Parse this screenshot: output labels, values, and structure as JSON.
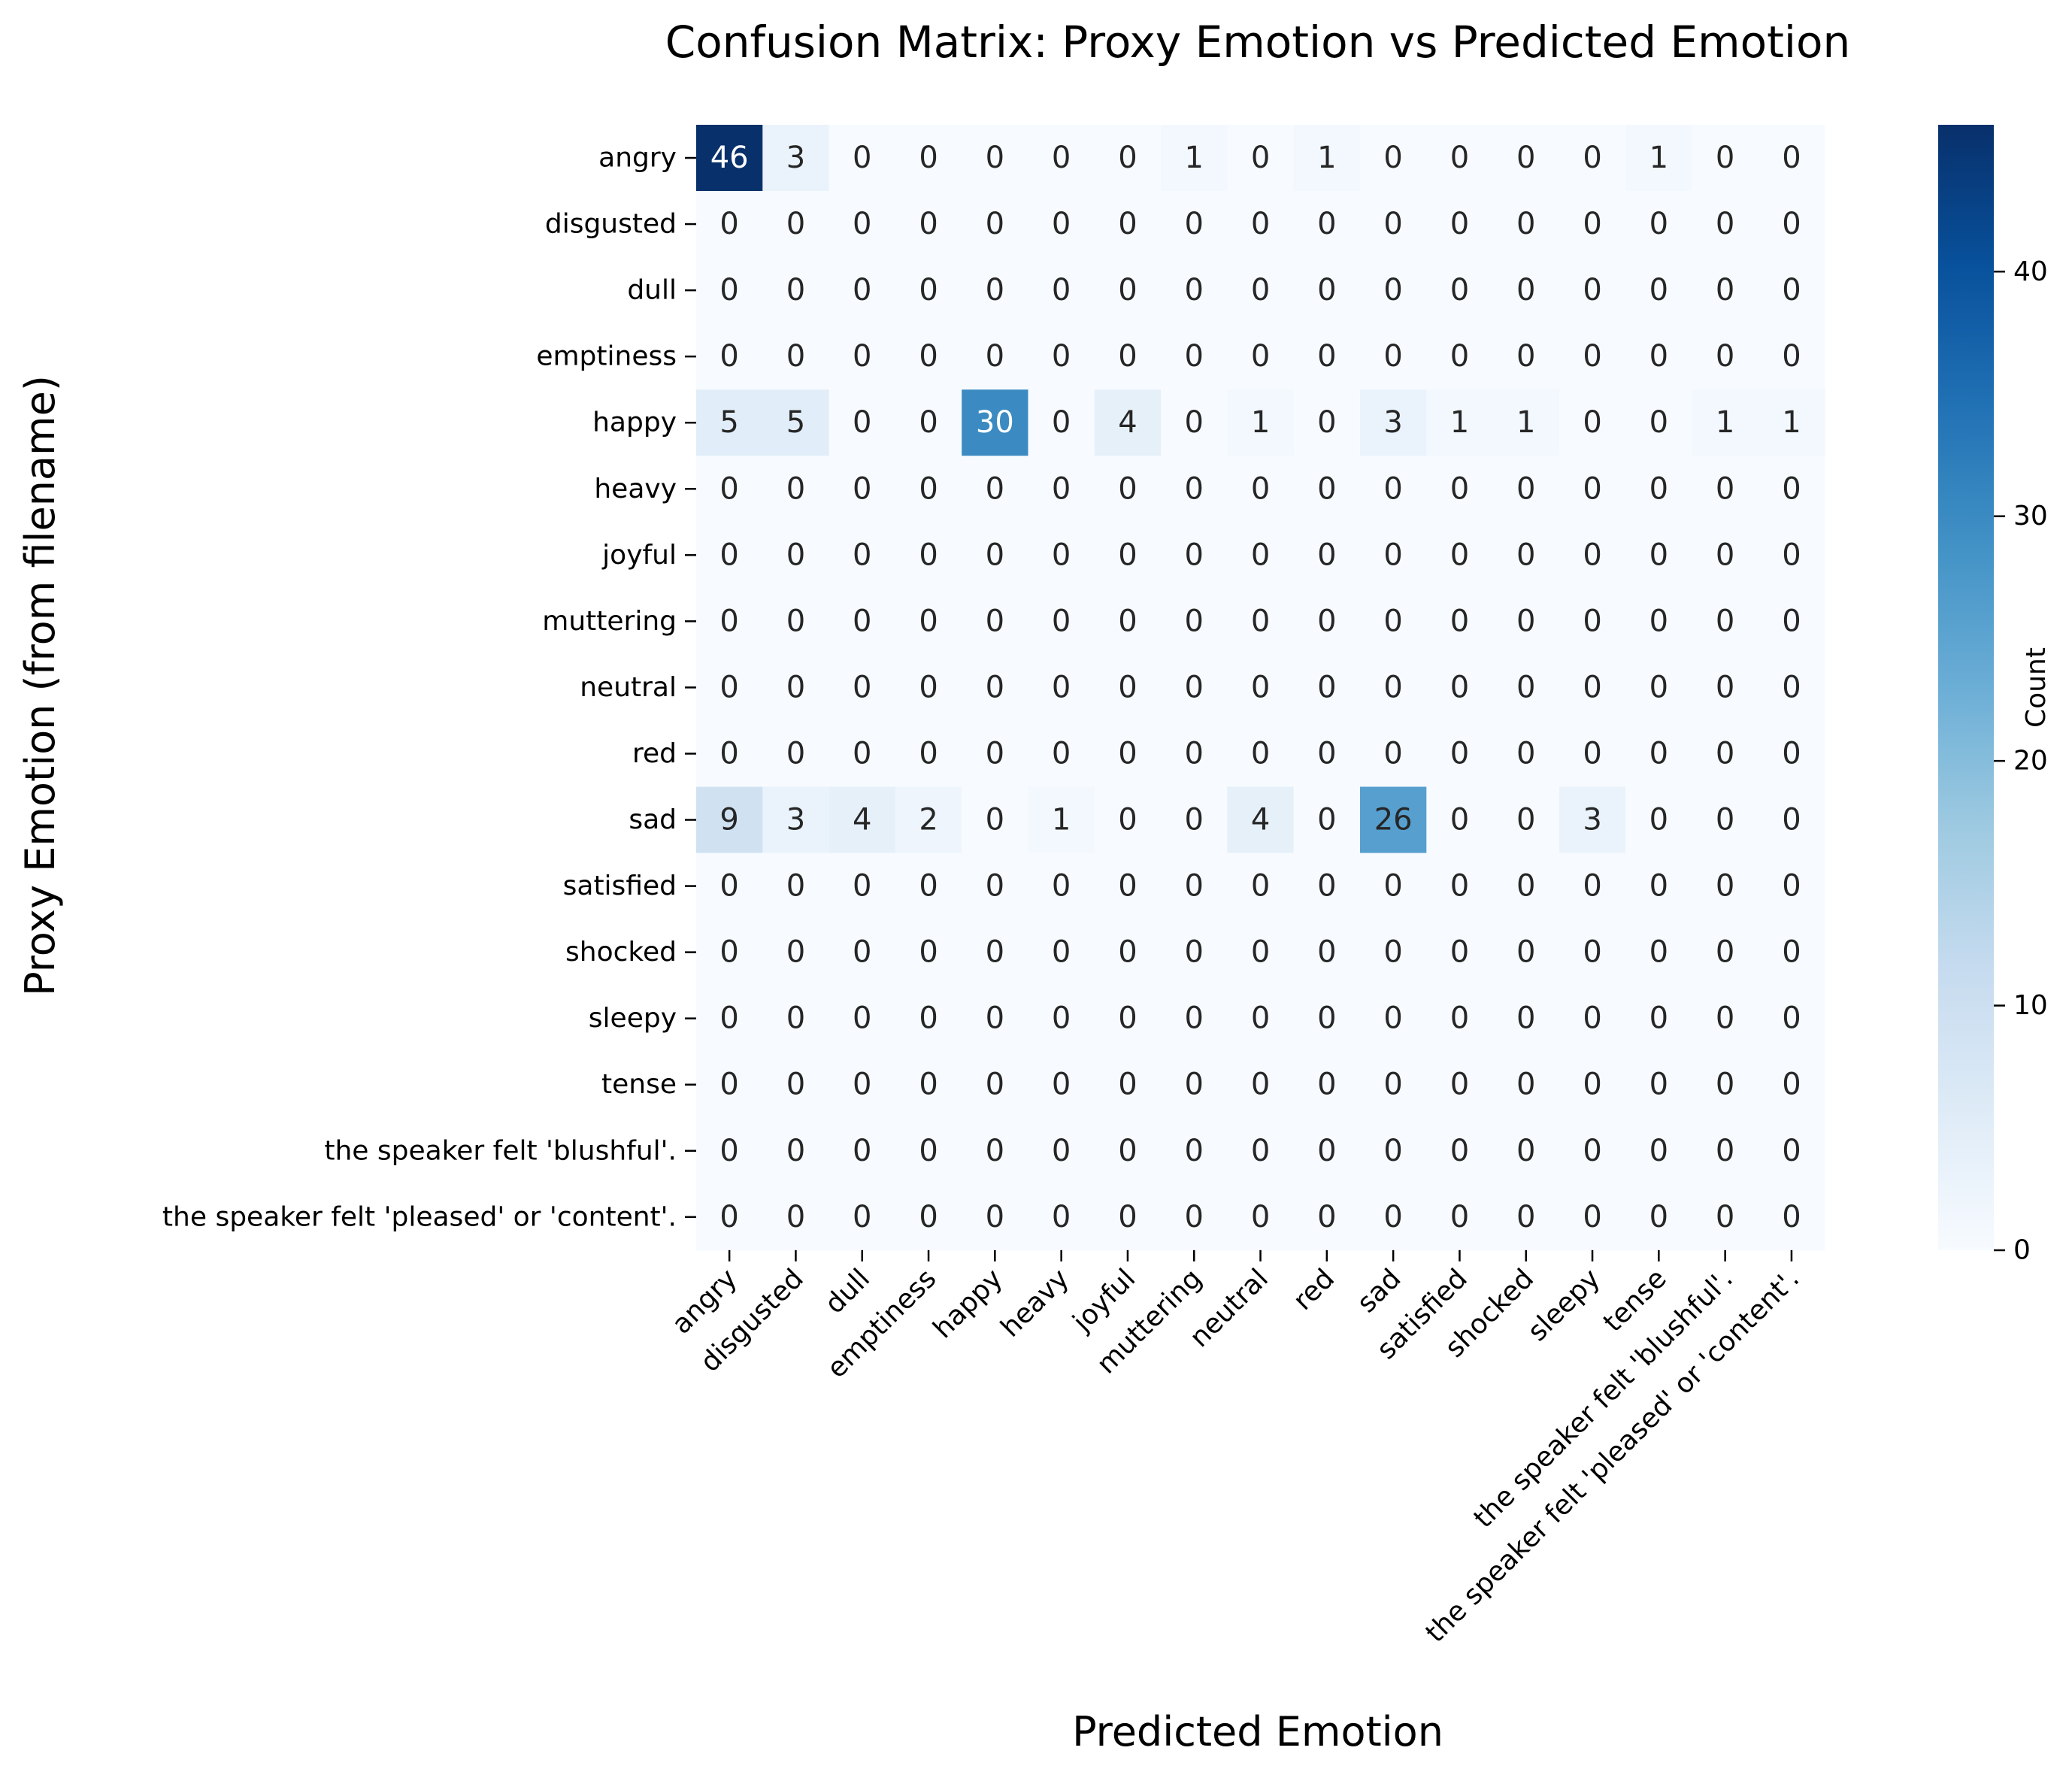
{
  "chart_data": {
    "type": "heatmap",
    "title": "Confusion Matrix: Proxy Emotion vs Predicted Emotion",
    "xlabel": "Predicted Emotion",
    "ylabel": "Proxy Emotion (from filename)",
    "colorbar_label": "Count",
    "colormap": "Blues",
    "colorbar_range": [
      0,
      46
    ],
    "colorbar_ticks": [
      0,
      10,
      20,
      30,
      40
    ],
    "x_categories": [
      "angry",
      "disgusted",
      "dull",
      "emptiness",
      "happy",
      "heavy",
      "joyful",
      "muttering",
      "neutral",
      "red",
      "sad",
      "satisfied",
      "shocked",
      "sleepy",
      "tense",
      "the speaker felt 'blushful'.",
      "the speaker felt 'pleased' or 'content'."
    ],
    "y_categories": [
      "angry",
      "disgusted",
      "dull",
      "emptiness",
      "happy",
      "heavy",
      "joyful",
      "muttering",
      "neutral",
      "red",
      "sad",
      "satisfied",
      "shocked",
      "sleepy",
      "tense",
      "the speaker felt 'blushful'.",
      "the speaker felt 'pleased' or 'content'."
    ],
    "values": [
      [
        46,
        3,
        0,
        0,
        0,
        0,
        0,
        1,
        0,
        1,
        0,
        0,
        0,
        0,
        1,
        0,
        0
      ],
      [
        0,
        0,
        0,
        0,
        0,
        0,
        0,
        0,
        0,
        0,
        0,
        0,
        0,
        0,
        0,
        0,
        0
      ],
      [
        0,
        0,
        0,
        0,
        0,
        0,
        0,
        0,
        0,
        0,
        0,
        0,
        0,
        0,
        0,
        0,
        0
      ],
      [
        0,
        0,
        0,
        0,
        0,
        0,
        0,
        0,
        0,
        0,
        0,
        0,
        0,
        0,
        0,
        0,
        0
      ],
      [
        5,
        5,
        0,
        0,
        30,
        0,
        4,
        0,
        1,
        0,
        3,
        1,
        1,
        0,
        0,
        1,
        1
      ],
      [
        0,
        0,
        0,
        0,
        0,
        0,
        0,
        0,
        0,
        0,
        0,
        0,
        0,
        0,
        0,
        0,
        0
      ],
      [
        0,
        0,
        0,
        0,
        0,
        0,
        0,
        0,
        0,
        0,
        0,
        0,
        0,
        0,
        0,
        0,
        0
      ],
      [
        0,
        0,
        0,
        0,
        0,
        0,
        0,
        0,
        0,
        0,
        0,
        0,
        0,
        0,
        0,
        0,
        0
      ],
      [
        0,
        0,
        0,
        0,
        0,
        0,
        0,
        0,
        0,
        0,
        0,
        0,
        0,
        0,
        0,
        0,
        0
      ],
      [
        0,
        0,
        0,
        0,
        0,
        0,
        0,
        0,
        0,
        0,
        0,
        0,
        0,
        0,
        0,
        0,
        0
      ],
      [
        9,
        3,
        4,
        2,
        0,
        1,
        0,
        0,
        4,
        0,
        26,
        0,
        0,
        3,
        0,
        0,
        0
      ],
      [
        0,
        0,
        0,
        0,
        0,
        0,
        0,
        0,
        0,
        0,
        0,
        0,
        0,
        0,
        0,
        0,
        0
      ],
      [
        0,
        0,
        0,
        0,
        0,
        0,
        0,
        0,
        0,
        0,
        0,
        0,
        0,
        0,
        0,
        0,
        0
      ],
      [
        0,
        0,
        0,
        0,
        0,
        0,
        0,
        0,
        0,
        0,
        0,
        0,
        0,
        0,
        0,
        0,
        0
      ],
      [
        0,
        0,
        0,
        0,
        0,
        0,
        0,
        0,
        0,
        0,
        0,
        0,
        0,
        0,
        0,
        0,
        0
      ],
      [
        0,
        0,
        0,
        0,
        0,
        0,
        0,
        0,
        0,
        0,
        0,
        0,
        0,
        0,
        0,
        0,
        0
      ],
      [
        0,
        0,
        0,
        0,
        0,
        0,
        0,
        0,
        0,
        0,
        0,
        0,
        0,
        0,
        0,
        0,
        0
      ]
    ]
  }
}
